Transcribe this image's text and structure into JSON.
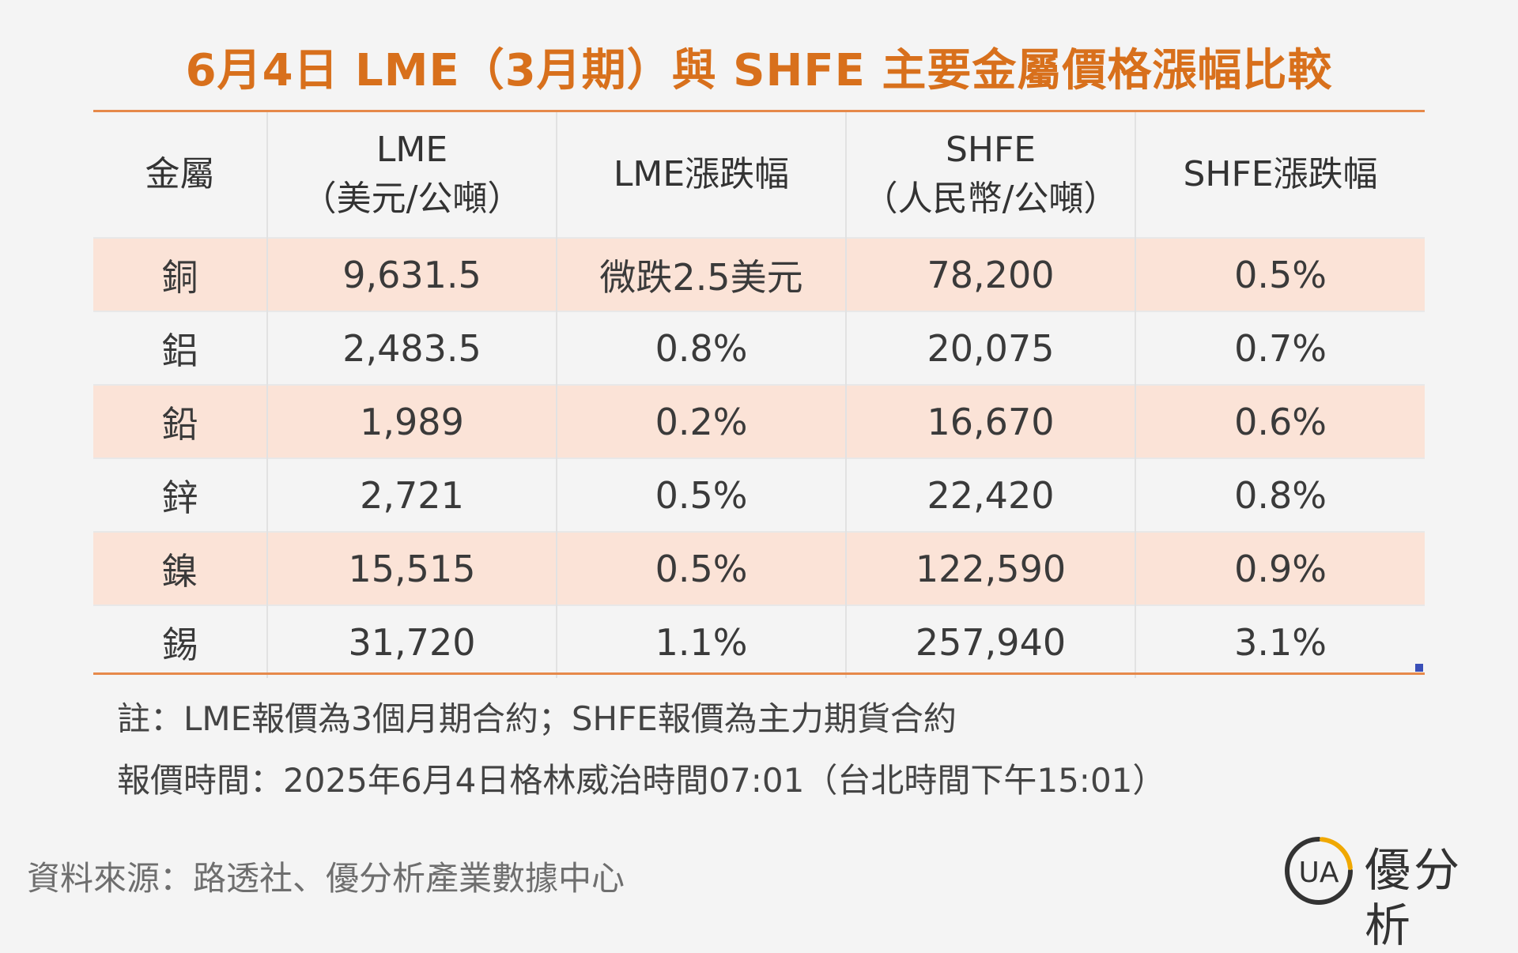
{
  "title": "6月4日 LME（3月期）與 SHFE 主要金屬價格漲幅比較",
  "table": {
    "headers": {
      "metal": "金屬",
      "lme_line1": "LME",
      "lme_line2": "（美元/公噸）",
      "lme_change": "LME漲跌幅",
      "shfe_line1": "SHFE",
      "shfe_line2": "（人民幣/公噸）",
      "shfe_change": "SHFE漲跌幅"
    },
    "rows": [
      {
        "metal": "銅",
        "lme": "9,631.5",
        "lme_change": "微跌2.5美元",
        "shfe": "78,200",
        "shfe_change": "0.5%"
      },
      {
        "metal": "鋁",
        "lme": "2,483.5",
        "lme_change": "0.8%",
        "shfe": "20,075",
        "shfe_change": "0.7%"
      },
      {
        "metal": "鉛",
        "lme": "1,989",
        "lme_change": "0.2%",
        "shfe": "16,670",
        "shfe_change": "0.6%"
      },
      {
        "metal": "鋅",
        "lme": "2,721",
        "lme_change": "0.5%",
        "shfe": "22,420",
        "shfe_change": "0.8%"
      },
      {
        "metal": "鎳",
        "lme": "15,515",
        "lme_change": "0.5%",
        "shfe": "122,590",
        "shfe_change": "0.9%"
      },
      {
        "metal": "錫",
        "lme": "31,720",
        "lme_change": "1.1%",
        "shfe": "257,940",
        "shfe_change": "3.1%"
      }
    ]
  },
  "notes": {
    "note1": "註：LME報價為3個月期合約；SHFE報價為主力期貨合約",
    "note2": "報價時間：2025年6月4日格林威治時間07:01（台北時間下午15:01）"
  },
  "source": "資料來源：路透社、優分析產業數據中心",
  "logo": {
    "mark_text": "UA",
    "name": "優分析",
    "icon": "ua-logo-icon"
  },
  "colors": {
    "title": "#d8701c",
    "rule": "#e6894a",
    "row_shade": "#fbe3d7",
    "background": "#f4f4f4",
    "logo_arc": "#f0a800"
  }
}
